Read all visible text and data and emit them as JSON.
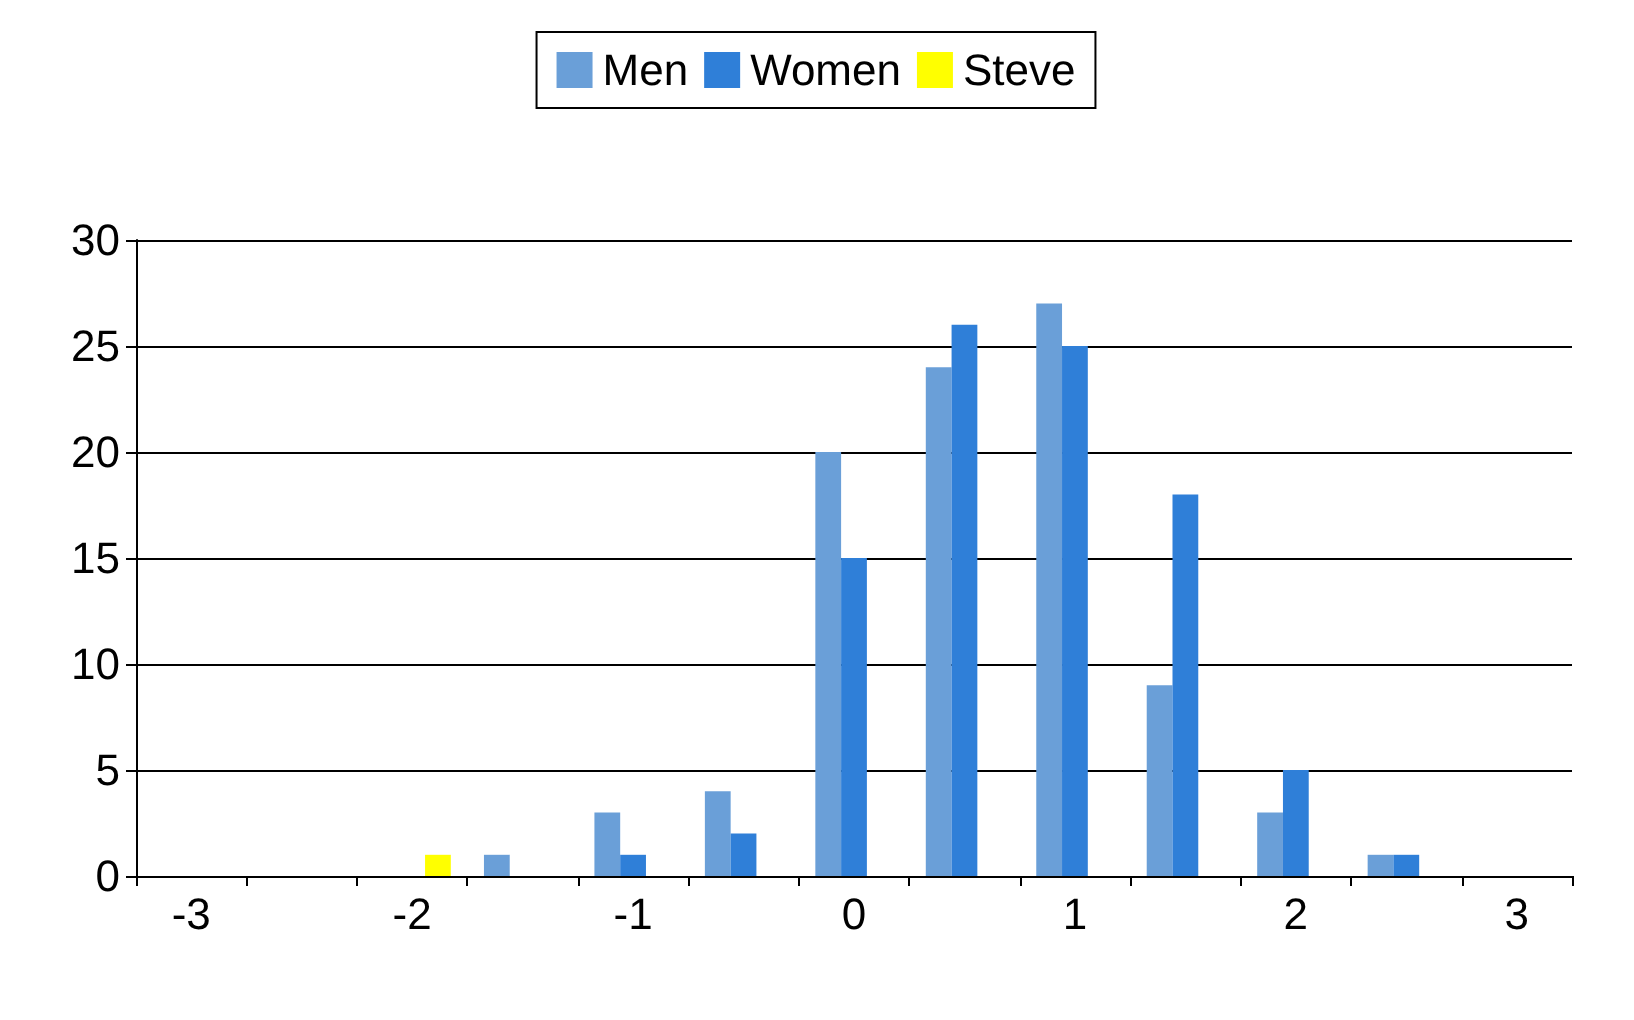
{
  "chart_data": {
    "type": "bar",
    "categories": [
      "-3",
      null,
      "-2",
      null,
      "-1",
      null,
      "0",
      null,
      "1",
      null,
      "2",
      null,
      "3"
    ],
    "series": [
      {
        "name": "Men",
        "color": "#6a9fd8",
        "values": [
          0,
          0,
          0,
          1,
          3,
          4,
          20,
          24,
          27,
          9,
          3,
          1,
          0
        ]
      },
      {
        "name": "Women",
        "color": "#2f7fd8",
        "values": [
          0,
          0,
          0,
          0,
          1,
          2,
          15,
          26,
          25,
          18,
          5,
          1,
          0
        ]
      },
      {
        "name": "Steve",
        "color": "#ffff00",
        "values": [
          null,
          null,
          1,
          null,
          null,
          null,
          null,
          null,
          null,
          null,
          null,
          null,
          null
        ]
      }
    ],
    "ylim": [
      0,
      30
    ],
    "yticks": [
      0,
      5,
      10,
      15,
      20,
      25,
      30
    ],
    "grid": "y",
    "legend": "top"
  }
}
